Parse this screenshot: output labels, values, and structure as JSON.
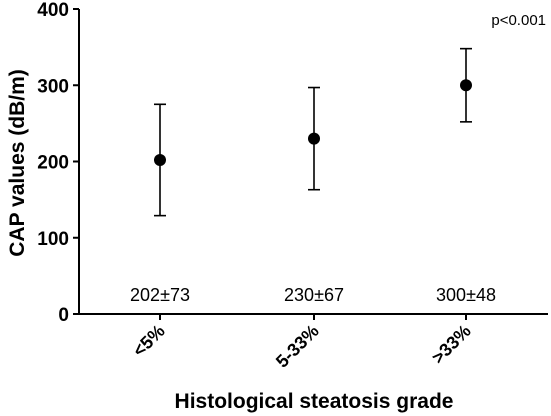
{
  "chart_data": {
    "type": "scatter",
    "title": "",
    "xlabel": "Histological steatosis grade",
    "ylabel": "CAP values (dB/m)",
    "ylim": [
      0,
      400
    ],
    "yticks": [
      "0",
      "100",
      "200",
      "300",
      "400"
    ],
    "categories": [
      "<5%",
      "5-33%",
      ">33%"
    ],
    "series": [
      {
        "values": [
          202,
          230,
          300
        ],
        "error_low": [
          129,
          163,
          252
        ],
        "error_high": [
          275,
          297,
          348
        ]
      }
    ],
    "data_labels": [
      "202±73",
      "230±67",
      "300±48"
    ],
    "annotation": "p<0.001",
    "grid": false
  }
}
